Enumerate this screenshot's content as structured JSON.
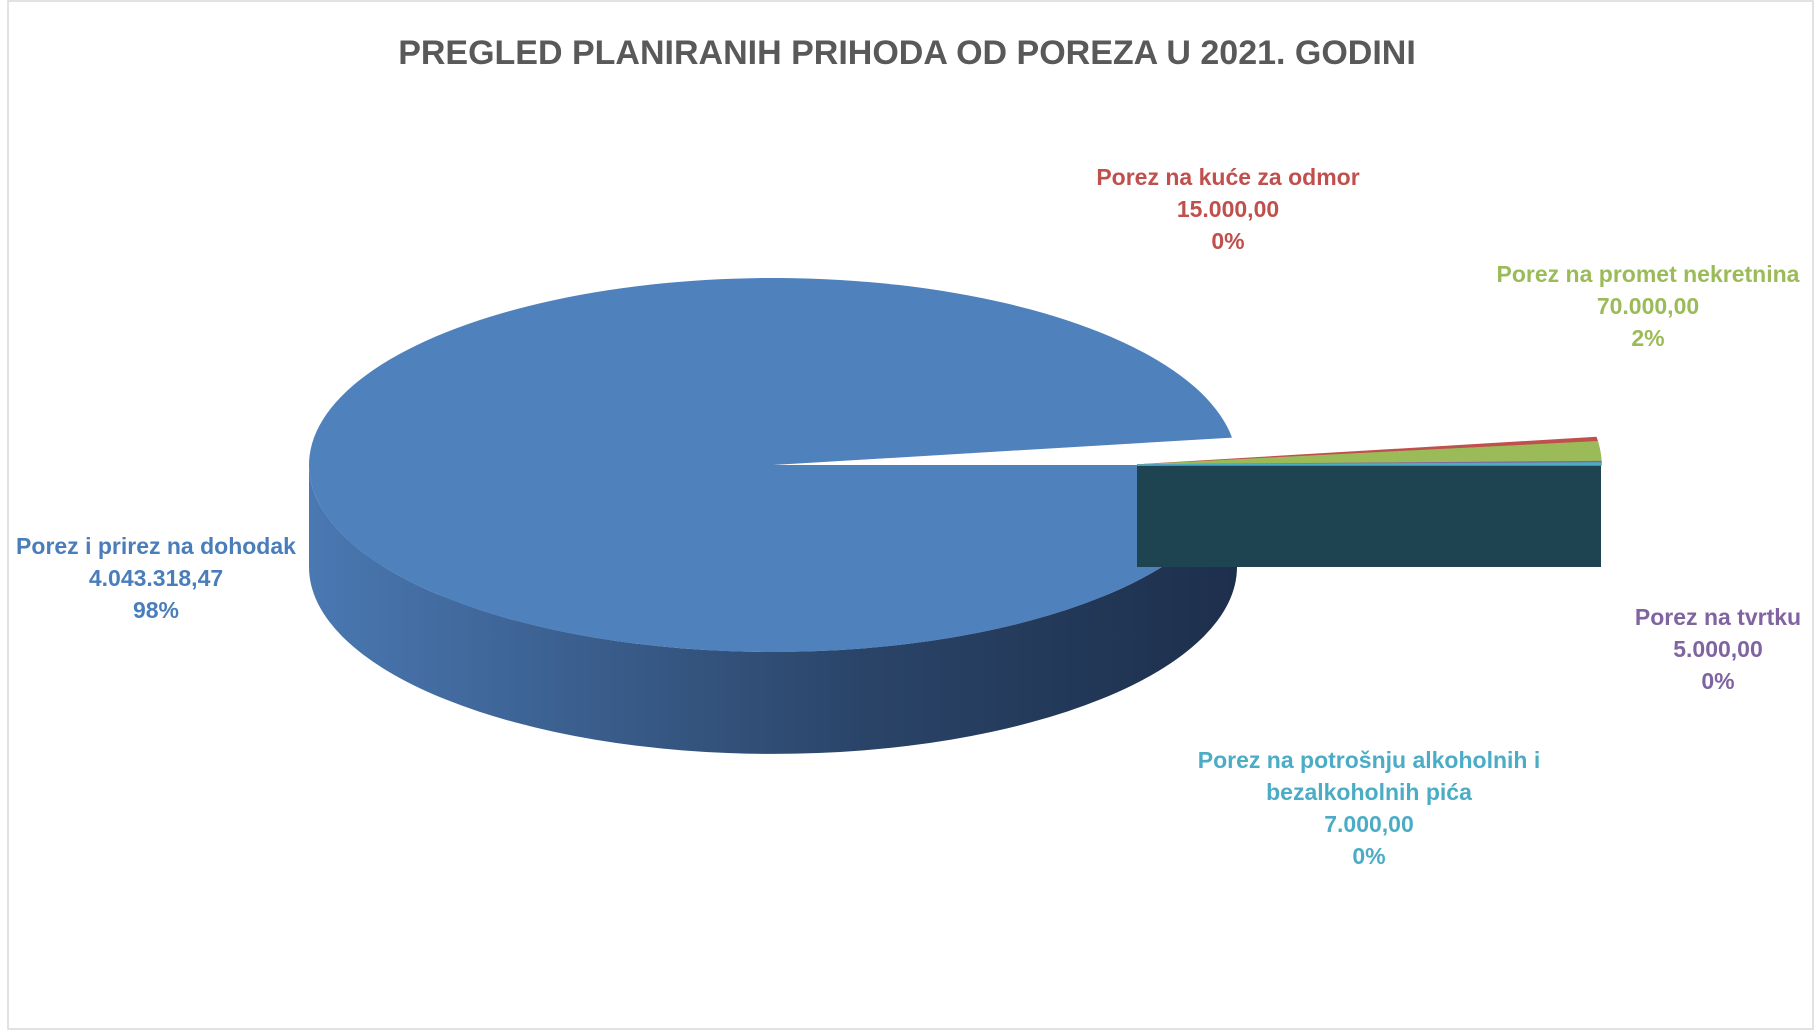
{
  "chart_data": {
    "type": "pie3d",
    "title": "PREGLED PLANIRANIH PRIHODA OD POREZA U 2021. GODINI",
    "categories": [
      "Porez i prirez na dohodak",
      "Porez na kuće za odmor",
      "Porez na promet nekretnina",
      "Porez na tvrtku",
      "Porez na potrošnju alkoholnih i bezalkoholnih pića"
    ],
    "values": [
      4043318.47,
      15000,
      70000,
      5000,
      7000
    ],
    "value_labels": [
      "4.043.318,47",
      "15.000,00",
      "70.000,00",
      "5.000,00",
      "7.000,00"
    ],
    "percents": [
      98,
      0,
      2,
      0,
      0
    ],
    "percent_labels": [
      "98%",
      "0%",
      "2%",
      "0%",
      "0%"
    ],
    "colors": [
      "#4f81bd",
      "#c0504d",
      "#9bbb59",
      "#8064a2",
      "#4bacc6"
    ]
  }
}
